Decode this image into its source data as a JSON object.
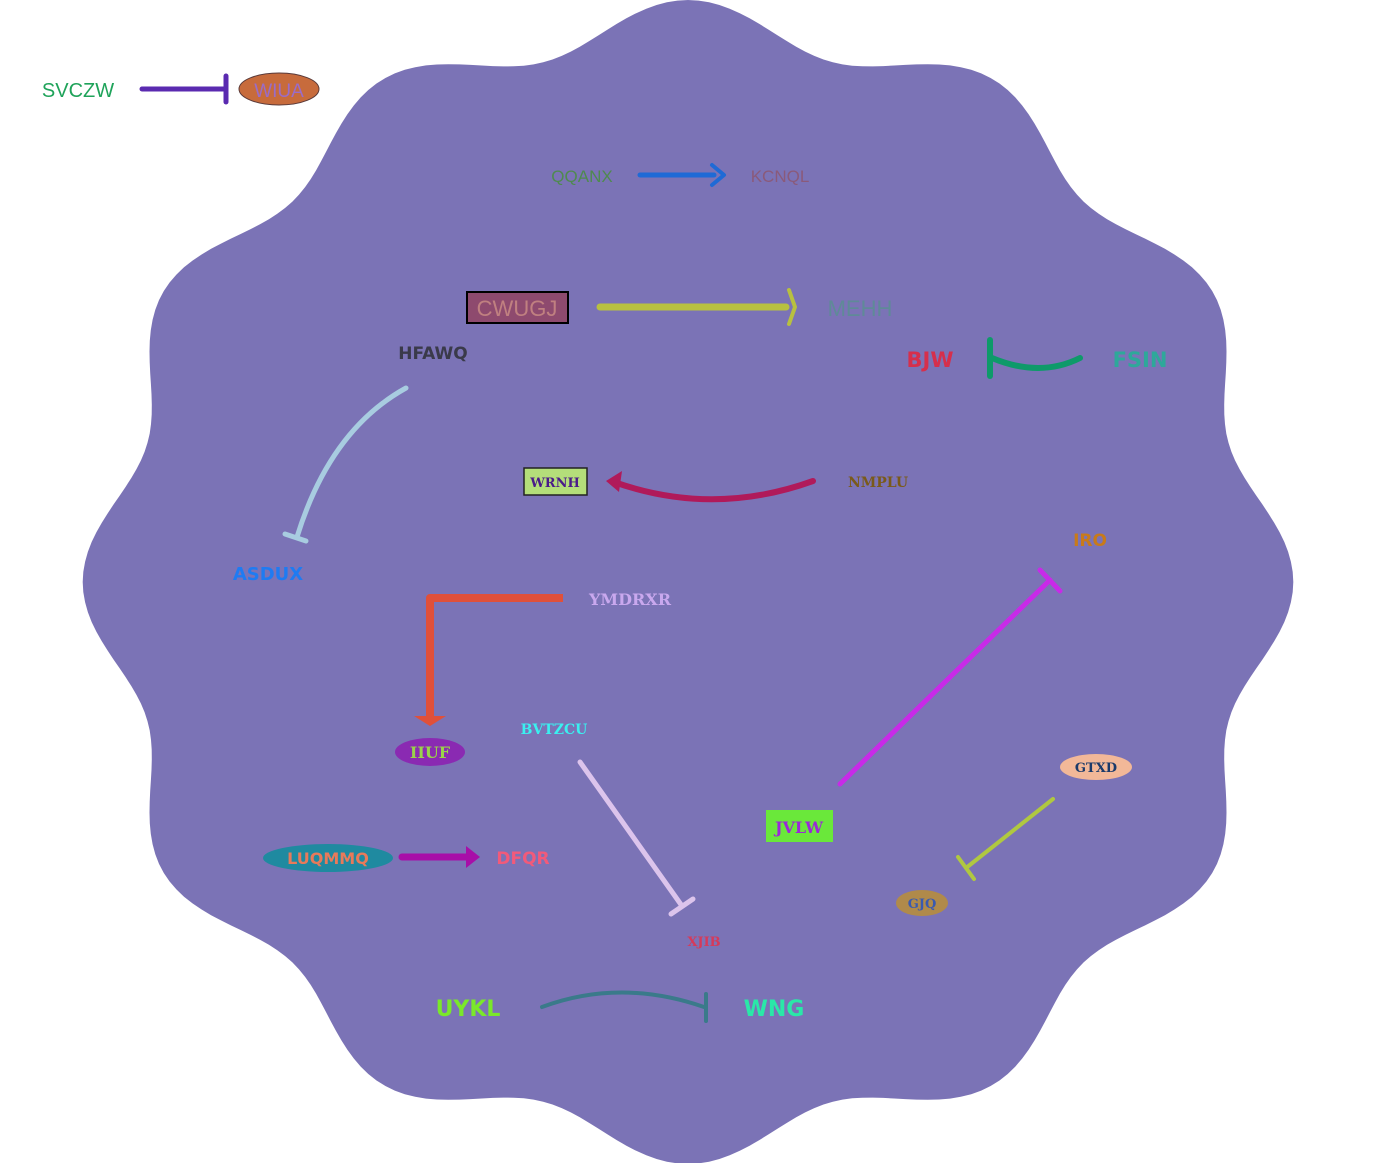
{
  "diagram": {
    "background_color": "#ffffff",
    "cell_color": "#7b73b6",
    "nodes": {
      "svczw": {
        "label": "SVCZW",
        "color": "#1fa35a"
      },
      "wiua": {
        "label": "WIUA",
        "color": "#9a6cc8",
        "fill": "#c76b3c"
      },
      "qqanx": {
        "label": "QQANX",
        "color": "#4f8a4f"
      },
      "kcnql": {
        "label": "KCNQL",
        "color": "#8a5a7a"
      },
      "cwugj": {
        "label": "CWUGJ",
        "color": "#c08080",
        "fill": "#8e4a6e",
        "border": "#000000"
      },
      "mehh": {
        "label": "MEHH",
        "color": "#5f8a98"
      },
      "hfawq": {
        "label": "HFAWQ",
        "color": "#3a3a4a"
      },
      "bjw": {
        "label": "BJW",
        "color": "#d62f4c"
      },
      "fsin": {
        "label": "FSIN",
        "color": "#2ea89a"
      },
      "wrnh": {
        "label": "WRNH",
        "color": "#4a1a8a",
        "fill": "#b4de7a",
        "border": "#222222"
      },
      "nmplu": {
        "label": "NMPLU",
        "color": "#7a5a1a"
      },
      "asdux": {
        "label": "ASDUX",
        "color": "#1f7bf2"
      },
      "iro": {
        "label": "IRO",
        "color": "#c87a1a"
      },
      "ymdrxr": {
        "label": "YMDRXR",
        "color": "#c9a8ee"
      },
      "iiuf": {
        "label": "IIUF",
        "color": "#9ad24a",
        "fill": "#8a2ab2"
      },
      "bvtzcu": {
        "label": "BVTZCU",
        "color": "#3af0f0"
      },
      "gtxd": {
        "label": "GTXD",
        "color": "#1a3a6a",
        "fill": "#f2b898"
      },
      "jvlw": {
        "label": "JVLW",
        "color": "#9a2ad6",
        "fill": "#6ae83a"
      },
      "luqmmq": {
        "label": "LUQMMQ",
        "color": "#e87a5a",
        "fill": "#1f8aa0"
      },
      "dfqr": {
        "label": "DFQR",
        "color": "#f25a7a"
      },
      "gjq": {
        "label": "GJQ",
        "color": "#3a5ab0",
        "fill": "#b08a4a"
      },
      "xjib": {
        "label": "XJIB",
        "color": "#d63a5a"
      },
      "uykl": {
        "label": "UYKL",
        "color": "#7ae82a"
      },
      "wng": {
        "label": "WNG",
        "color": "#2ae8a8"
      }
    },
    "edges": [
      {
        "from": "SVCZW",
        "to": "WIUA",
        "type": "inhibition",
        "color": "#5a2ab0"
      },
      {
        "from": "QQANX",
        "to": "KCNQL",
        "type": "activation",
        "color": "#1f6ad6"
      },
      {
        "from": "CWUGJ",
        "to": "MEHH",
        "type": "activation",
        "color": "#b8c040"
      },
      {
        "from": "FSIN",
        "to": "BJW",
        "type": "inhibition",
        "color": "#0e9a6a"
      },
      {
        "from": "HFAWQ",
        "to": "ASDUX",
        "type": "inhibition",
        "color": "#a8cce0"
      },
      {
        "from": "NMPLU",
        "to": "WRNH",
        "type": "activation",
        "color": "#b01a5a"
      },
      {
        "from": "YMDRXR",
        "to": "IIUF",
        "type": "activation",
        "color": "#e0503a"
      },
      {
        "from": "JVLW",
        "to": "IRO",
        "type": "inhibition",
        "color": "#c82ae8"
      },
      {
        "from": "BVTZCU",
        "to": "XJIB",
        "type": "inhibition",
        "color": "#dcc4ec"
      },
      {
        "from": "GTXD",
        "to": "GJQ",
        "type": "inhibition",
        "color": "#b0c840"
      },
      {
        "from": "LUQMMQ",
        "to": "DFQR",
        "type": "activation",
        "color": "#a80ea8"
      },
      {
        "from": "UYKL",
        "to": "WNG",
        "type": "inhibition",
        "color": "#3a7a8a"
      }
    ]
  }
}
